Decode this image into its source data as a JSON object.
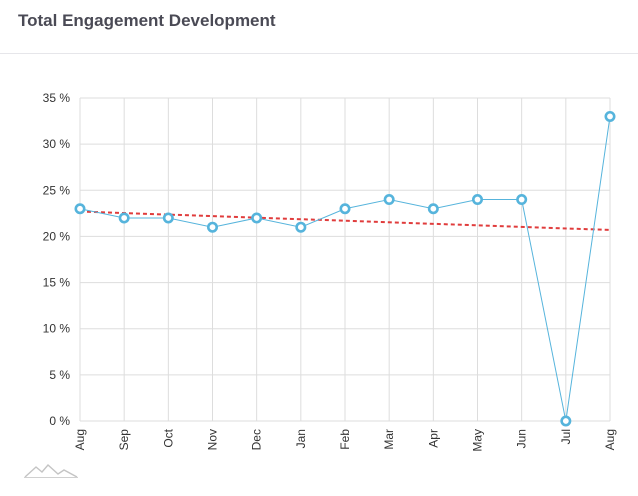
{
  "header": {
    "title": "Total Engagement Development"
  },
  "colors": {
    "series": "#56b4dc",
    "trend": "#e03c3c",
    "grid": "#dddddd",
    "title": "#4a4a55"
  },
  "chart_data": {
    "type": "line",
    "title": "Total Engagement Development",
    "xlabel": "",
    "ylabel": "",
    "categories": [
      "Aug",
      "Sep",
      "Oct",
      "Nov",
      "Dec",
      "Jan",
      "Feb",
      "Mar",
      "Apr",
      "May",
      "Jun",
      "Jul",
      "Aug"
    ],
    "series": [
      {
        "values": [
          23,
          22,
          22,
          21,
          22,
          21,
          23,
          24,
          23,
          24,
          24,
          0,
          33
        ]
      }
    ],
    "trendline": {
      "start": 22.7,
      "end": 20.7,
      "style": "dashed"
    },
    "ylim": [
      0,
      35
    ],
    "yticks": [
      0,
      5,
      10,
      15,
      20,
      25,
      30,
      35
    ],
    "ytick_labels": [
      "0 %",
      "5 %",
      "10 %",
      "15 %",
      "20 %",
      "25 %",
      "30 %",
      "35 %"
    ],
    "grid": true,
    "legend": "none"
  },
  "footer": {
    "logo_icon": "mountain-logo-icon"
  }
}
